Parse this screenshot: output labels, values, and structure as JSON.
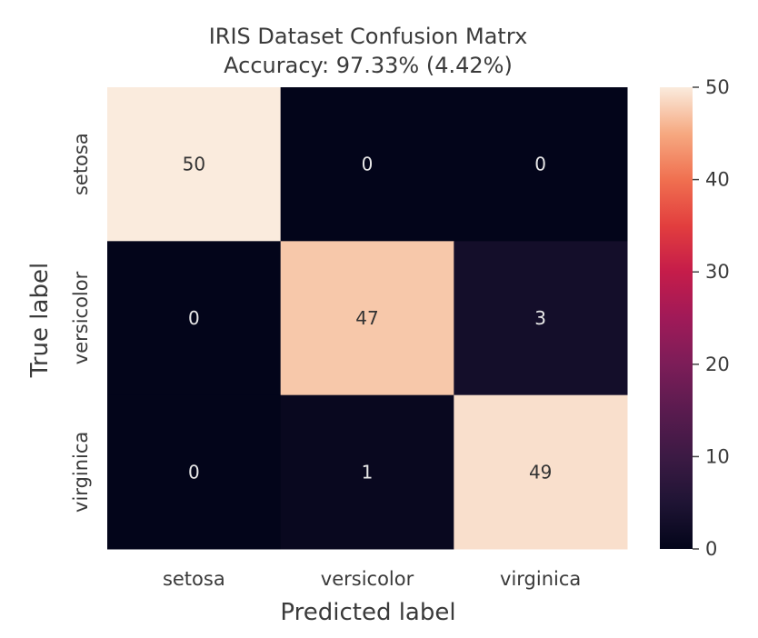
{
  "chart_data": {
    "type": "heatmap",
    "title": "IRIS Dataset Confusion Matrx",
    "subtitle": "Accuracy: 97.33% (4.42%)",
    "xlabel": "Predicted label",
    "ylabel": "True label",
    "x_categories": [
      "setosa",
      "versicolor",
      "virginica"
    ],
    "y_categories": [
      "setosa",
      "versicolor",
      "virginica"
    ],
    "values": [
      [
        50,
        0,
        0
      ],
      [
        0,
        47,
        3
      ],
      [
        0,
        1,
        49
      ]
    ],
    "colorbar": {
      "range": [
        0,
        50
      ],
      "ticks": [
        0,
        10,
        20,
        30,
        40,
        50
      ],
      "colormap": "rocket"
    },
    "colors": {
      "low": "#03051a",
      "high": "#faebdd",
      "text_on_dark": "#e8e8e8",
      "text_on_light": "#333333"
    }
  }
}
